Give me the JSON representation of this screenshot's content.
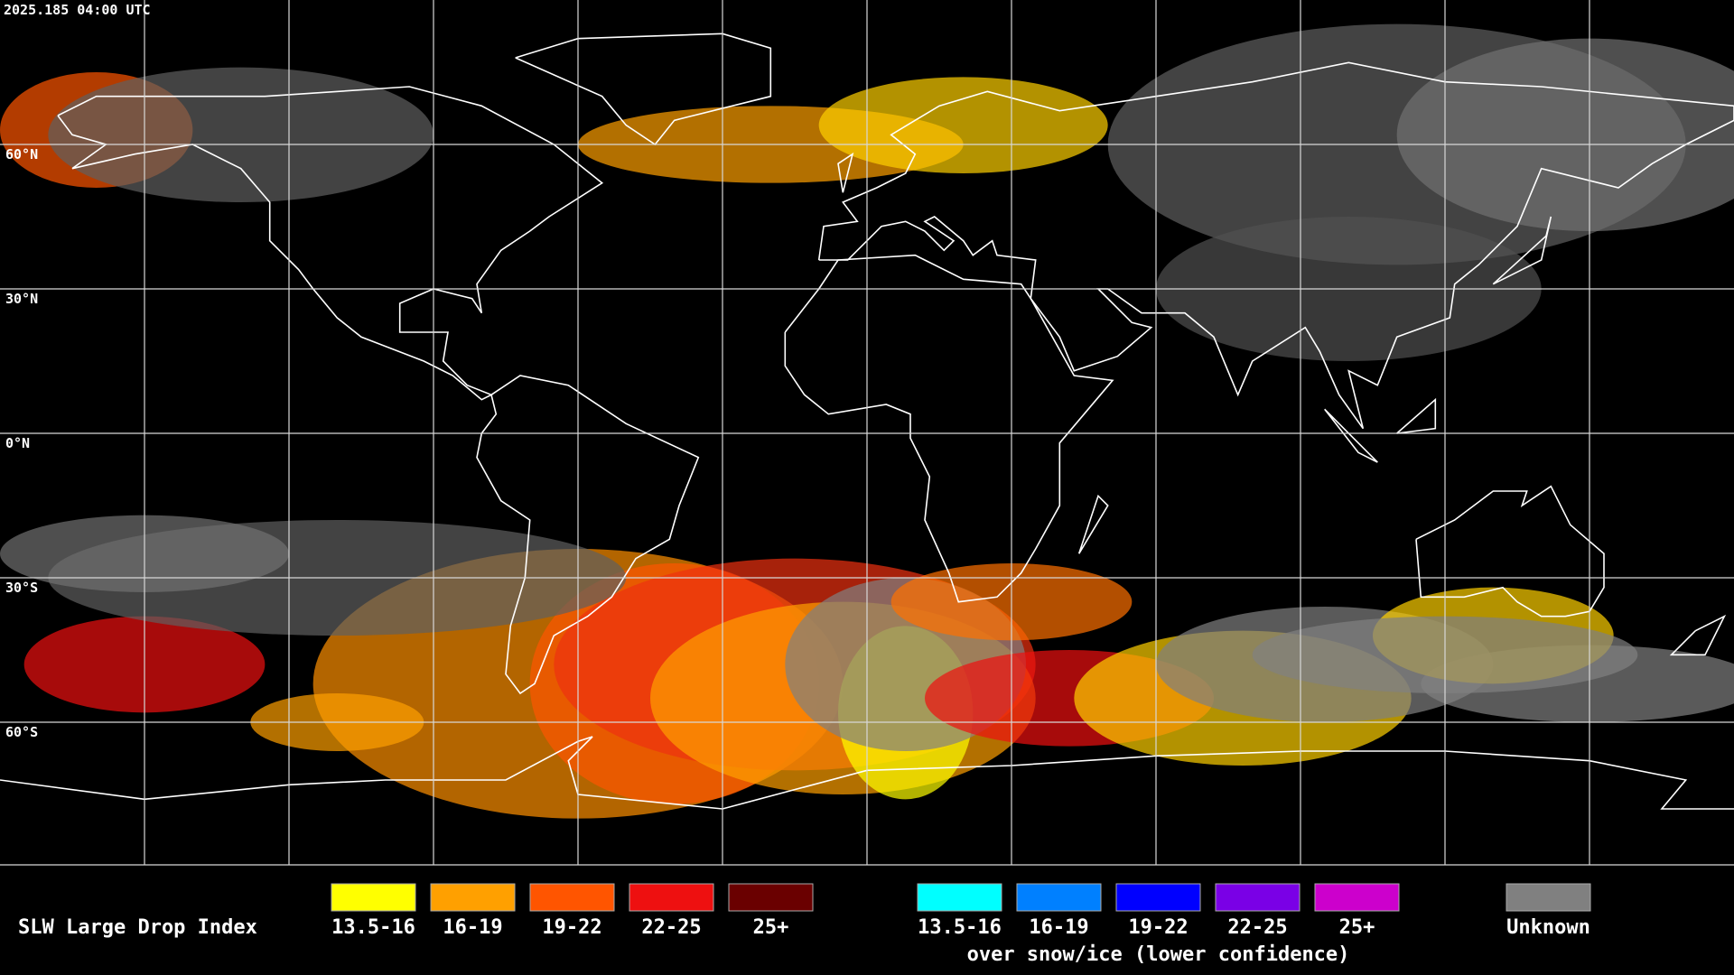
{
  "timestamp": "2025.185 04:00 UTC",
  "lat_labels": [
    "60°N",
    "30°N",
    "0°N",
    "30°S",
    "60°S"
  ],
  "legend": {
    "title": "SLW Large Drop Index",
    "groups": [
      {
        "items": [
          {
            "label": "13.5-16",
            "color": "#ffff00"
          },
          {
            "label": "16-19",
            "color": "#ffa000"
          },
          {
            "label": "19-22",
            "color": "#ff5500"
          },
          {
            "label": "22-25",
            "color": "#ee1010"
          },
          {
            "label": "25+",
            "color": "#6a0000"
          }
        ]
      },
      {
        "items": [
          {
            "label": "13.5-16",
            "color": "#00ffff"
          },
          {
            "label": "16-19",
            "color": "#0080ff"
          },
          {
            "label": "19-22",
            "color": "#0000ff"
          },
          {
            "label": "22-25",
            "color": "#7a00e6"
          },
          {
            "label": "25+",
            "color": "#cc00cc"
          }
        ],
        "caption": "over snow/ice (lower confidence)"
      },
      {
        "items": [
          {
            "label": "Unknown",
            "color": "#808080"
          }
        ]
      }
    ]
  }
}
